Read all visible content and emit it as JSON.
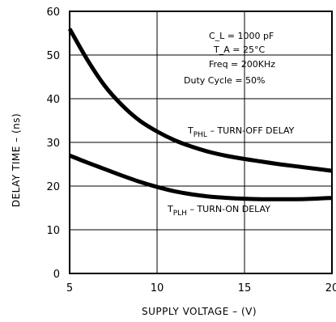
{
  "chart_data": {
    "type": "line",
    "title": "",
    "xlabel": "SUPPLY VOLTAGE – (V)",
    "ylabel": "DELAY TIME – (ns)",
    "xlim": [
      5,
      20
    ],
    "ylim": [
      0,
      60
    ],
    "x_ticks": [
      "5",
      "10",
      "15",
      "20"
    ],
    "y_ticks": [
      "0",
      "10",
      "20",
      "30",
      "40",
      "50",
      "60"
    ],
    "grid": true,
    "conditions": {
      "cl": "C_L = 1000 pF",
      "ta": "T_A = 25°C",
      "freq": "Freq = 200KHz",
      "duty": "Duty Cycle = 50%"
    },
    "series": [
      {
        "name": "T_PHL – TURN-OFF DELAY",
        "label_main": "T",
        "label_sub": "PHL",
        "label_rest": " – TURN-OFF DELAY",
        "x": [
          5,
          6,
          7,
          8,
          9,
          10,
          11,
          12,
          13,
          14,
          15,
          16,
          17,
          18,
          19,
          20
        ],
        "y": [
          56,
          49,
          43,
          38.5,
          35,
          32.5,
          30.5,
          29,
          27.8,
          26.9,
          26.2,
          25.6,
          25,
          24.5,
          24,
          23.5
        ]
      },
      {
        "name": "T_PLH – TURN-ON DELAY",
        "label_main": "T",
        "label_sub": "PLH",
        "label_rest": " – TURN-ON DELAY",
        "x": [
          5,
          6,
          7,
          8,
          9,
          10,
          11,
          12,
          13,
          14,
          15,
          16,
          17,
          18,
          19,
          20
        ],
        "y": [
          27,
          25.4,
          23.9,
          22.4,
          21,
          19.8,
          18.8,
          18.1,
          17.6,
          17.3,
          17.1,
          17,
          17,
          17,
          17.1,
          17.3
        ]
      }
    ]
  }
}
